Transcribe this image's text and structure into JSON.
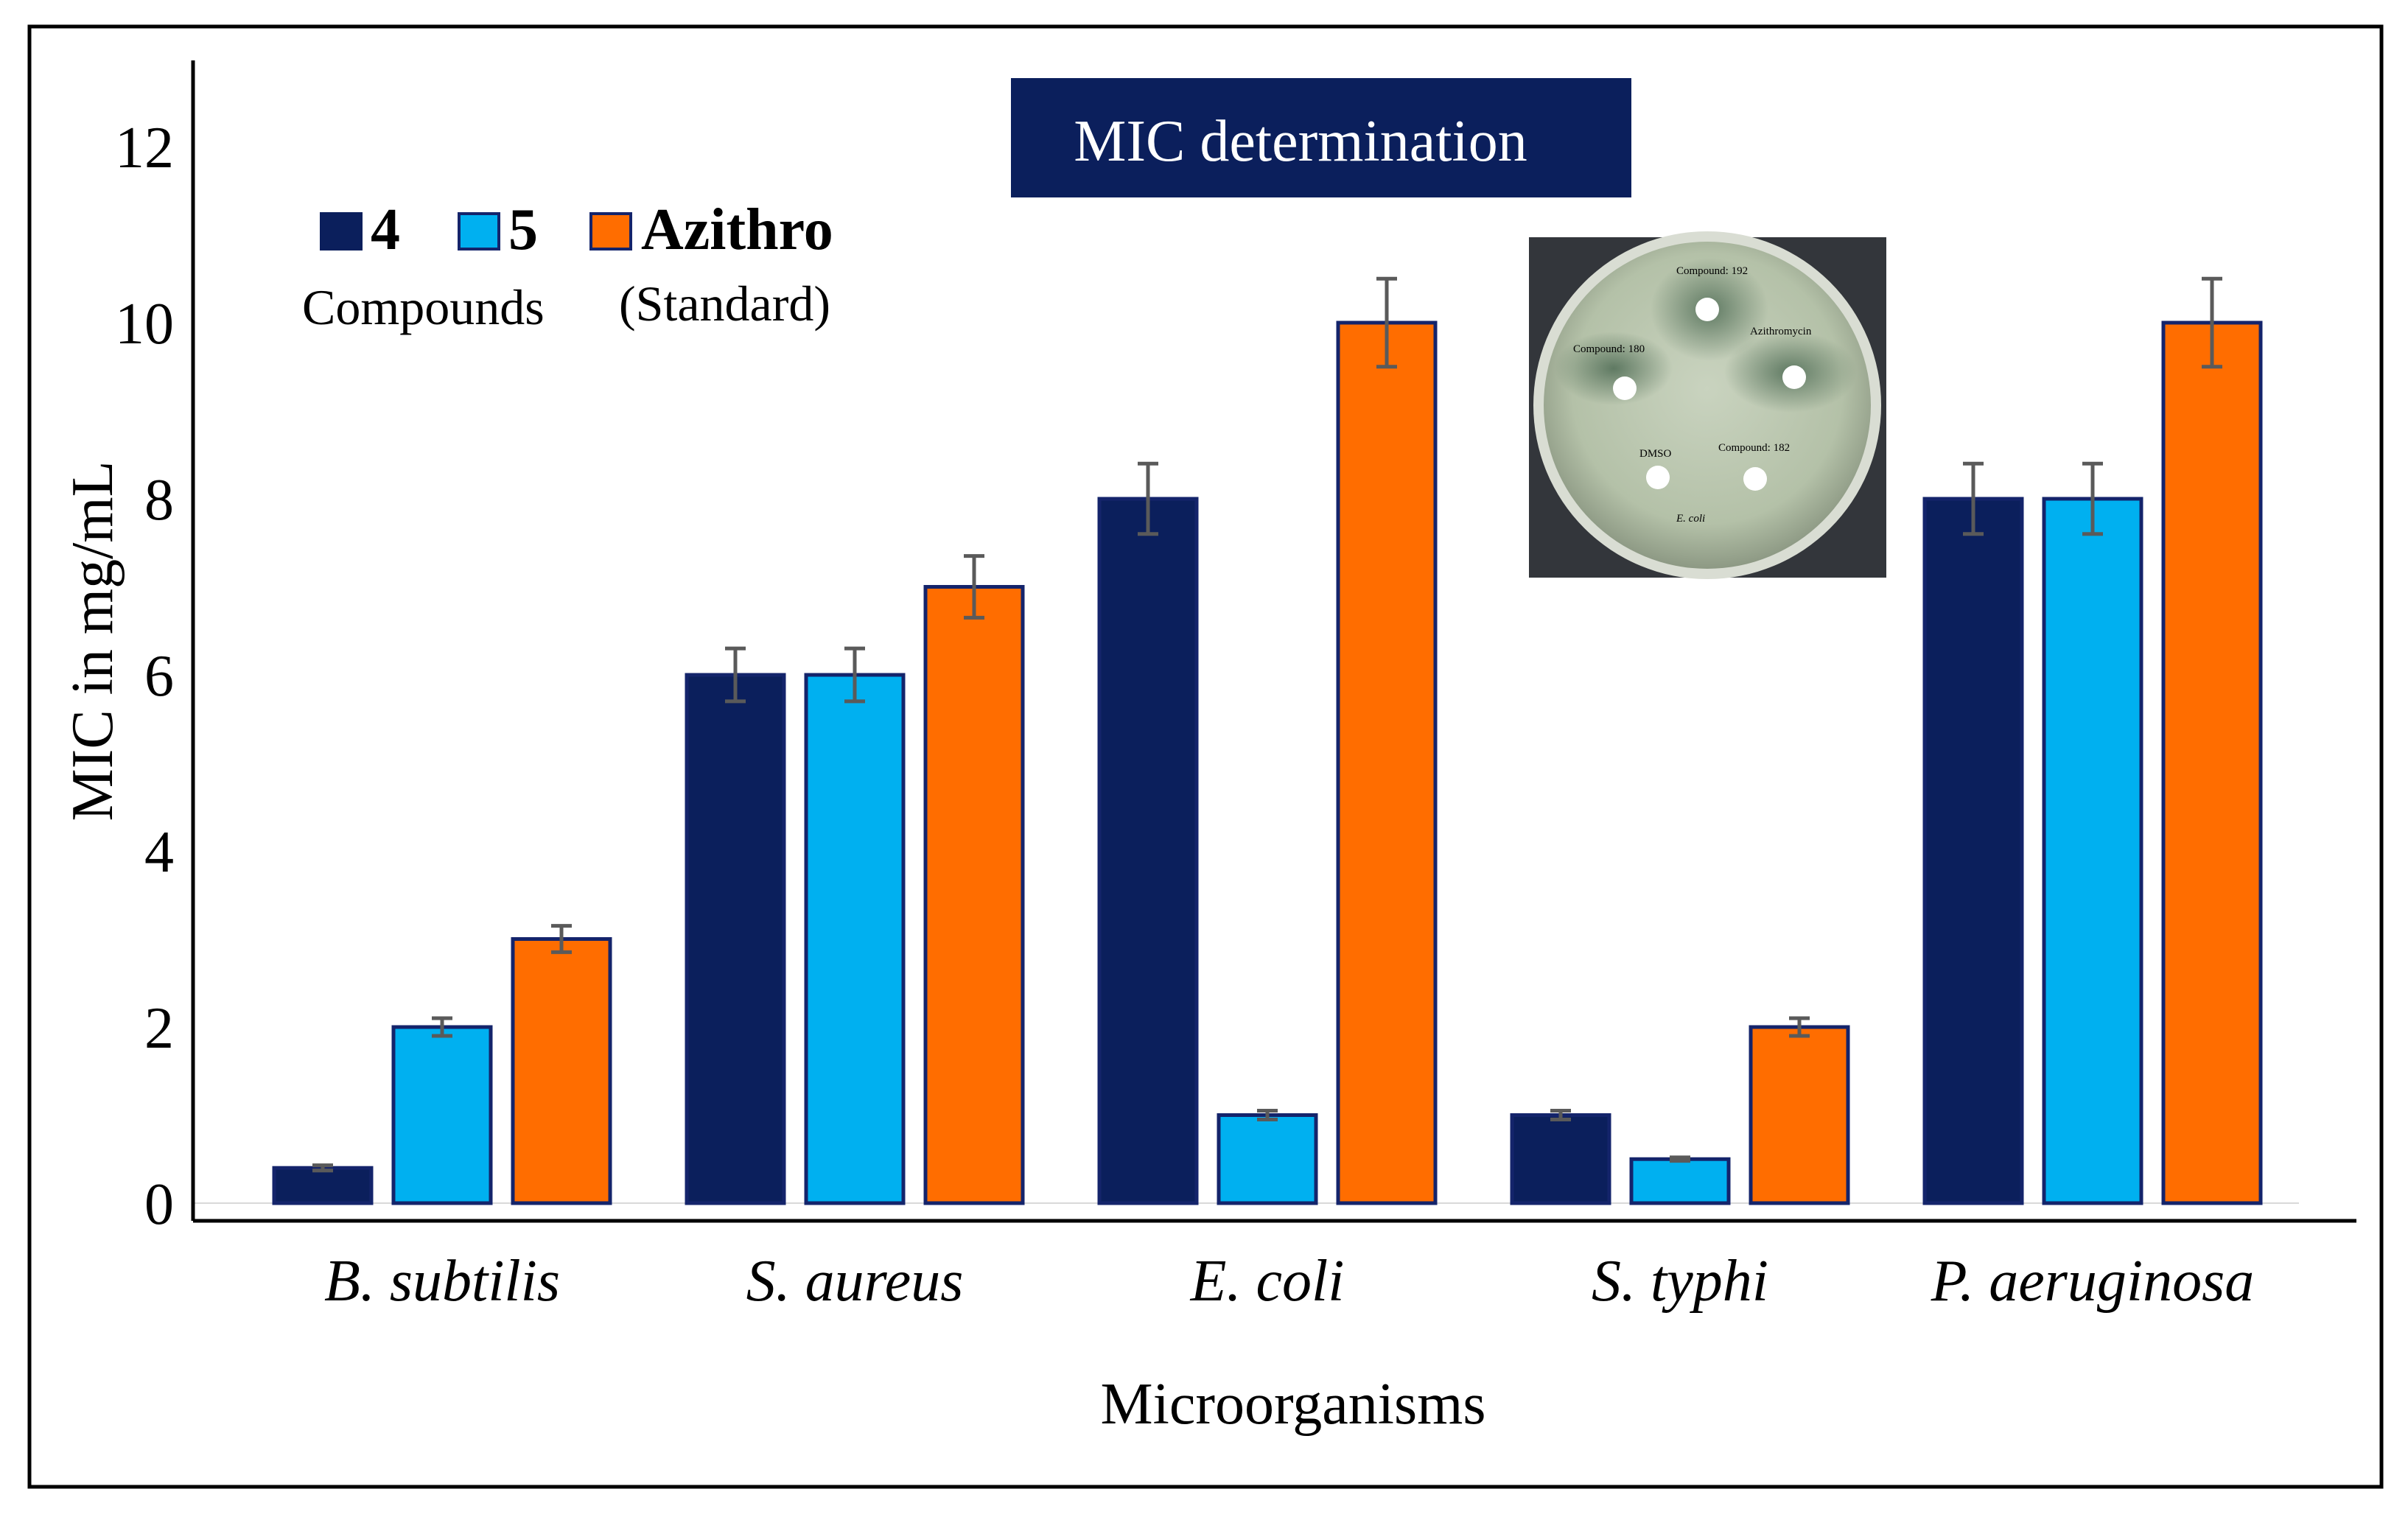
{
  "chart_data": {
    "type": "bar",
    "title": "MIC determination",
    "xlabel": "Microorganisms",
    "ylabel": "MIC in mg/mL",
    "ylim": [
      0,
      13
    ],
    "yticks": [
      0,
      2,
      4,
      6,
      8,
      10,
      12
    ],
    "categories": [
      "B. subtilis",
      "S. aureus",
      "E. coli",
      "S. typhi",
      "P. aeruginosa"
    ],
    "series": [
      {
        "name": "4",
        "color": "#0b1f5c",
        "values": [
          0.4,
          6,
          8,
          1,
          8
        ],
        "errors": [
          0.03,
          0.3,
          0.4,
          0.05,
          0.4
        ]
      },
      {
        "name": "5",
        "color": "#00b0f0",
        "values": [
          2,
          6,
          1,
          0.5,
          8
        ],
        "errors": [
          0.1,
          0.3,
          0.05,
          0.02,
          0.4
        ]
      },
      {
        "name": "Azithro",
        "color": "#ff6d00",
        "values": [
          3,
          7,
          10,
          2,
          10
        ],
        "errors": [
          0.15,
          0.35,
          0.5,
          0.1,
          0.5
        ]
      }
    ],
    "legend": {
      "position": "top-left",
      "compounds_label": "Compounds",
      "standard_label": "(Standard)"
    },
    "inset_photo": {
      "labels": [
        "Compound: 192",
        "Azithromycin",
        "Compound: 180",
        "DMSO",
        "Compound: 182",
        "E. coli"
      ]
    }
  }
}
